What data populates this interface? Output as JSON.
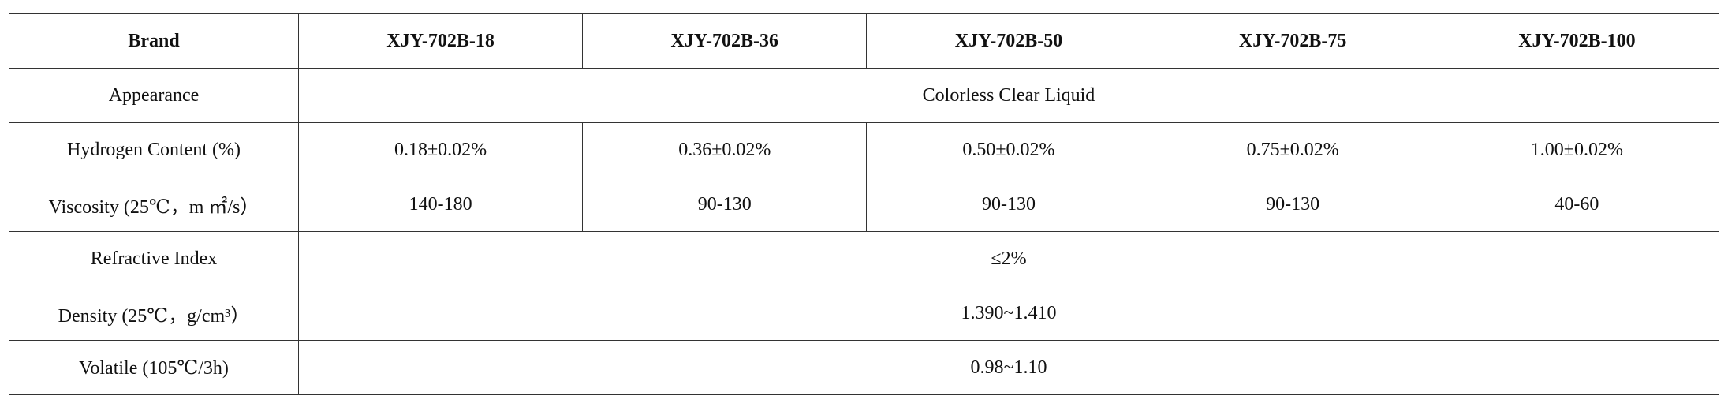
{
  "table": {
    "header": [
      "Brand",
      "XJY-702B-18",
      "XJY-702B-36",
      "XJY-702B-50",
      "XJY-702B-75",
      "XJY-702B-100"
    ],
    "rows": [
      [
        "Appearance",
        "Colorless Clear Liquid"
      ],
      [
        "Hydrogen Content (%)",
        "0.18±0.02%",
        "0.36±0.02%",
        "0.50±0.02%",
        "0.75±0.02%",
        "1.00±0.02%"
      ],
      [
        "Viscosity (25℃，m ㎡/s）",
        "140-180",
        "90-130",
        "90-130",
        "90-130",
        "40-60"
      ],
      [
        "Refractive Index",
        "≤2%"
      ],
      [
        "Density (25℃，g/cm³）",
        "1.390~1.410"
      ],
      [
        "Volatile (105℃/3h)",
        "0.98~1.10"
      ]
    ]
  }
}
